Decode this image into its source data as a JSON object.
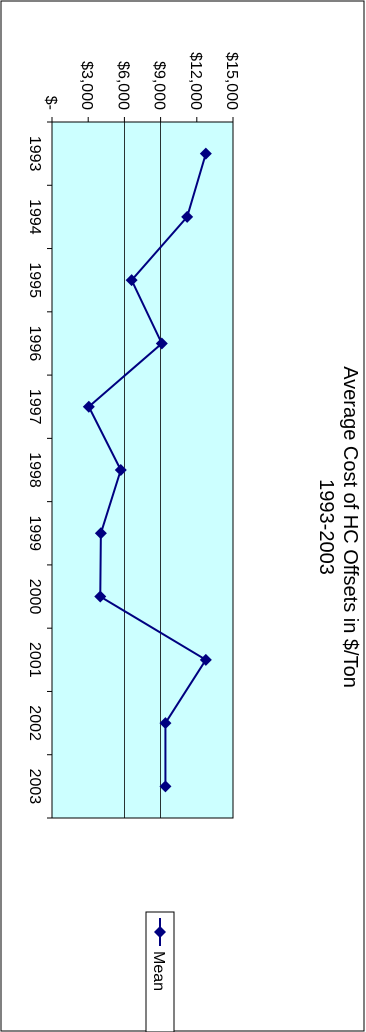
{
  "chart_data": {
    "type": "line",
    "title": "Average Cost of HC Offsets in $/Ton",
    "subtitle": "1993-2003",
    "xlabel": "",
    "ylabel": "",
    "categories": [
      "1993",
      "1994",
      "1995",
      "1996",
      "1997",
      "1998",
      "1999",
      "2000",
      "2001",
      "2002",
      "2003"
    ],
    "series": [
      {
        "name": "Mean",
        "values": [
          12750,
          11200,
          6600,
          9100,
          3050,
          5700,
          4050,
          4000,
          12750,
          9400,
          9400
        ]
      }
    ],
    "ylim": [
      0,
      15000
    ],
    "y_ticks": [
      0,
      3000,
      6000,
      9000,
      12000,
      15000
    ],
    "y_tick_labels": [
      "$-",
      "$3,000",
      "$6,000",
      "$9,000",
      "$12,000",
      "$15,000"
    ],
    "gridlines": [
      6000,
      9000
    ],
    "legend_position": "bottom",
    "orientation": "rotated 90 degrees clockwise",
    "colors": {
      "plot_background": "#ccffff",
      "series_line": "#000080",
      "marker": "#000080",
      "axis": "#000000",
      "gridline": "#000000"
    }
  }
}
